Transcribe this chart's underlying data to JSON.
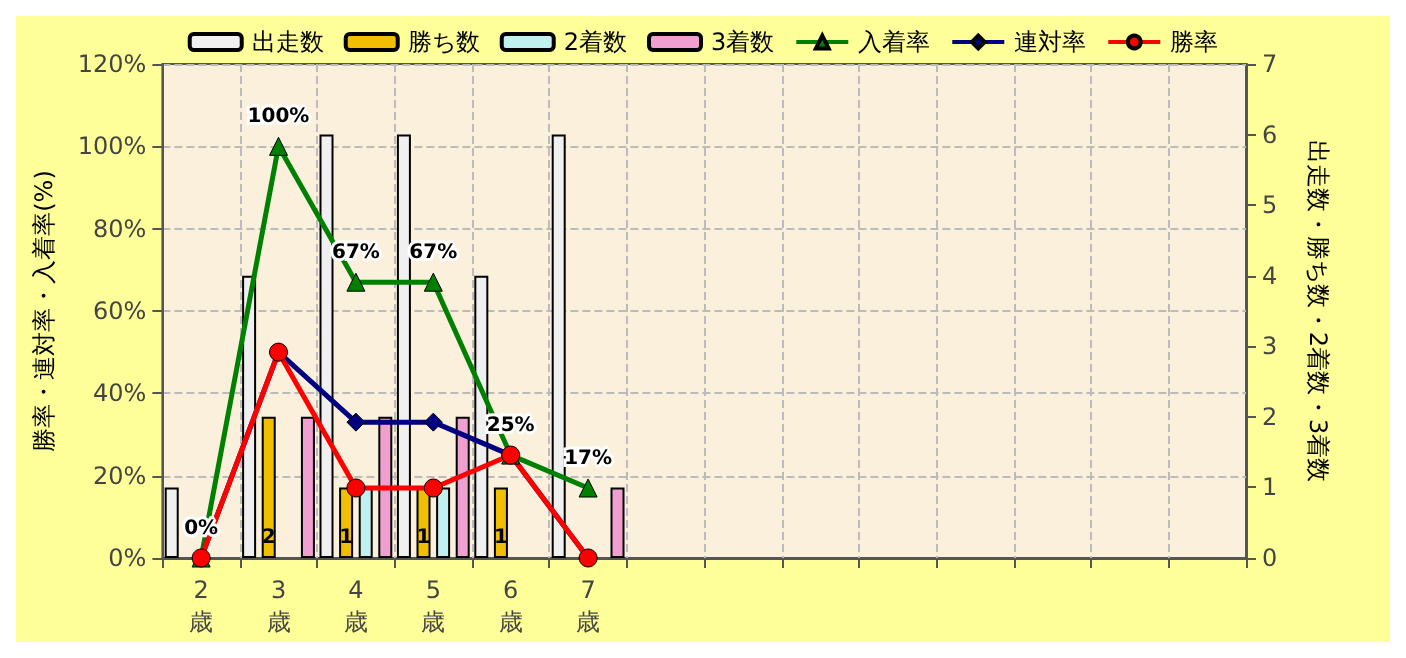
{
  "chart_data": {
    "type": "bar",
    "ylabel": "勝率・連対率・入着率(%)",
    "y2label": "出走数・勝ち数・2着数・3着数",
    "categories": [
      "2\n歳",
      "3\n歳",
      "4\n歳",
      "5\n歳",
      "6\n歳",
      "7\n歳",
      null,
      null,
      null,
      null,
      null,
      null,
      null,
      null
    ],
    "series": [
      {
        "name": "出走数",
        "axis": "y2",
        "color": "#f0f0f0",
        "values": [
          1,
          4,
          6,
          6,
          4,
          6,
          null,
          null,
          null,
          null,
          null,
          null,
          null,
          null
        ]
      },
      {
        "name": "勝ち数",
        "axis": "y2",
        "color": "#f0c000",
        "values": [
          0,
          2,
          1,
          1,
          1,
          0,
          null,
          null,
          null,
          null,
          null,
          null,
          null,
          null
        ],
        "value_labels": [
          null,
          "2",
          "1",
          "1",
          "1",
          null,
          null,
          null,
          null,
          null,
          null,
          null,
          null,
          null
        ]
      },
      {
        "name": "2着数",
        "axis": "y2",
        "color": "#c0f0f0",
        "values": [
          0,
          0,
          1,
          1,
          0,
          0,
          null,
          null,
          null,
          null,
          null,
          null,
          null,
          null
        ]
      },
      {
        "name": "3着数",
        "axis": "y2",
        "color": "#f0a0d0",
        "values": [
          0,
          2,
          2,
          2,
          0,
          1,
          null,
          null,
          null,
          null,
          null,
          null,
          null,
          null
        ]
      },
      {
        "name": "入着率",
        "type": "line",
        "marker": "triangle",
        "color": "#008000",
        "values": [
          0,
          100,
          67,
          67,
          25,
          17,
          null,
          null,
          null,
          null,
          null,
          null,
          null,
          null
        ],
        "value_labels": [
          "0%",
          "100%",
          "67%",
          "67%",
          "25%",
          "17%",
          null,
          null,
          null,
          null,
          null,
          null,
          null,
          null
        ]
      },
      {
        "name": "連対率",
        "type": "line",
        "marker": "diamond",
        "color": "#000080",
        "values": [
          0,
          50,
          33,
          33,
          25,
          0,
          null,
          null,
          null,
          null,
          null,
          null,
          null,
          null
        ]
      },
      {
        "name": "勝率",
        "type": "line",
        "marker": "circle",
        "color": "#ff0000",
        "values": [
          0,
          50,
          17,
          17,
          25,
          0,
          null,
          null,
          null,
          null,
          null,
          null,
          null,
          null
        ]
      }
    ],
    "ylim": [
      0,
      120
    ],
    "yticks": [
      {
        "value": 0,
        "label": "0%"
      },
      {
        "value": 20,
        "label": "20%"
      },
      {
        "value": 40,
        "label": "40%"
      },
      {
        "value": 60,
        "label": "60%"
      },
      {
        "value": 80,
        "label": "80%"
      },
      {
        "value": 100,
        "label": "100%"
      },
      {
        "value": 120,
        "label": "120%"
      }
    ],
    "y2lim": [
      0,
      7
    ],
    "y2ticks": [
      0,
      1,
      2,
      3,
      4,
      5,
      6,
      7
    ],
    "grid": true,
    "legend": "top",
    "line_style": "solid"
  }
}
